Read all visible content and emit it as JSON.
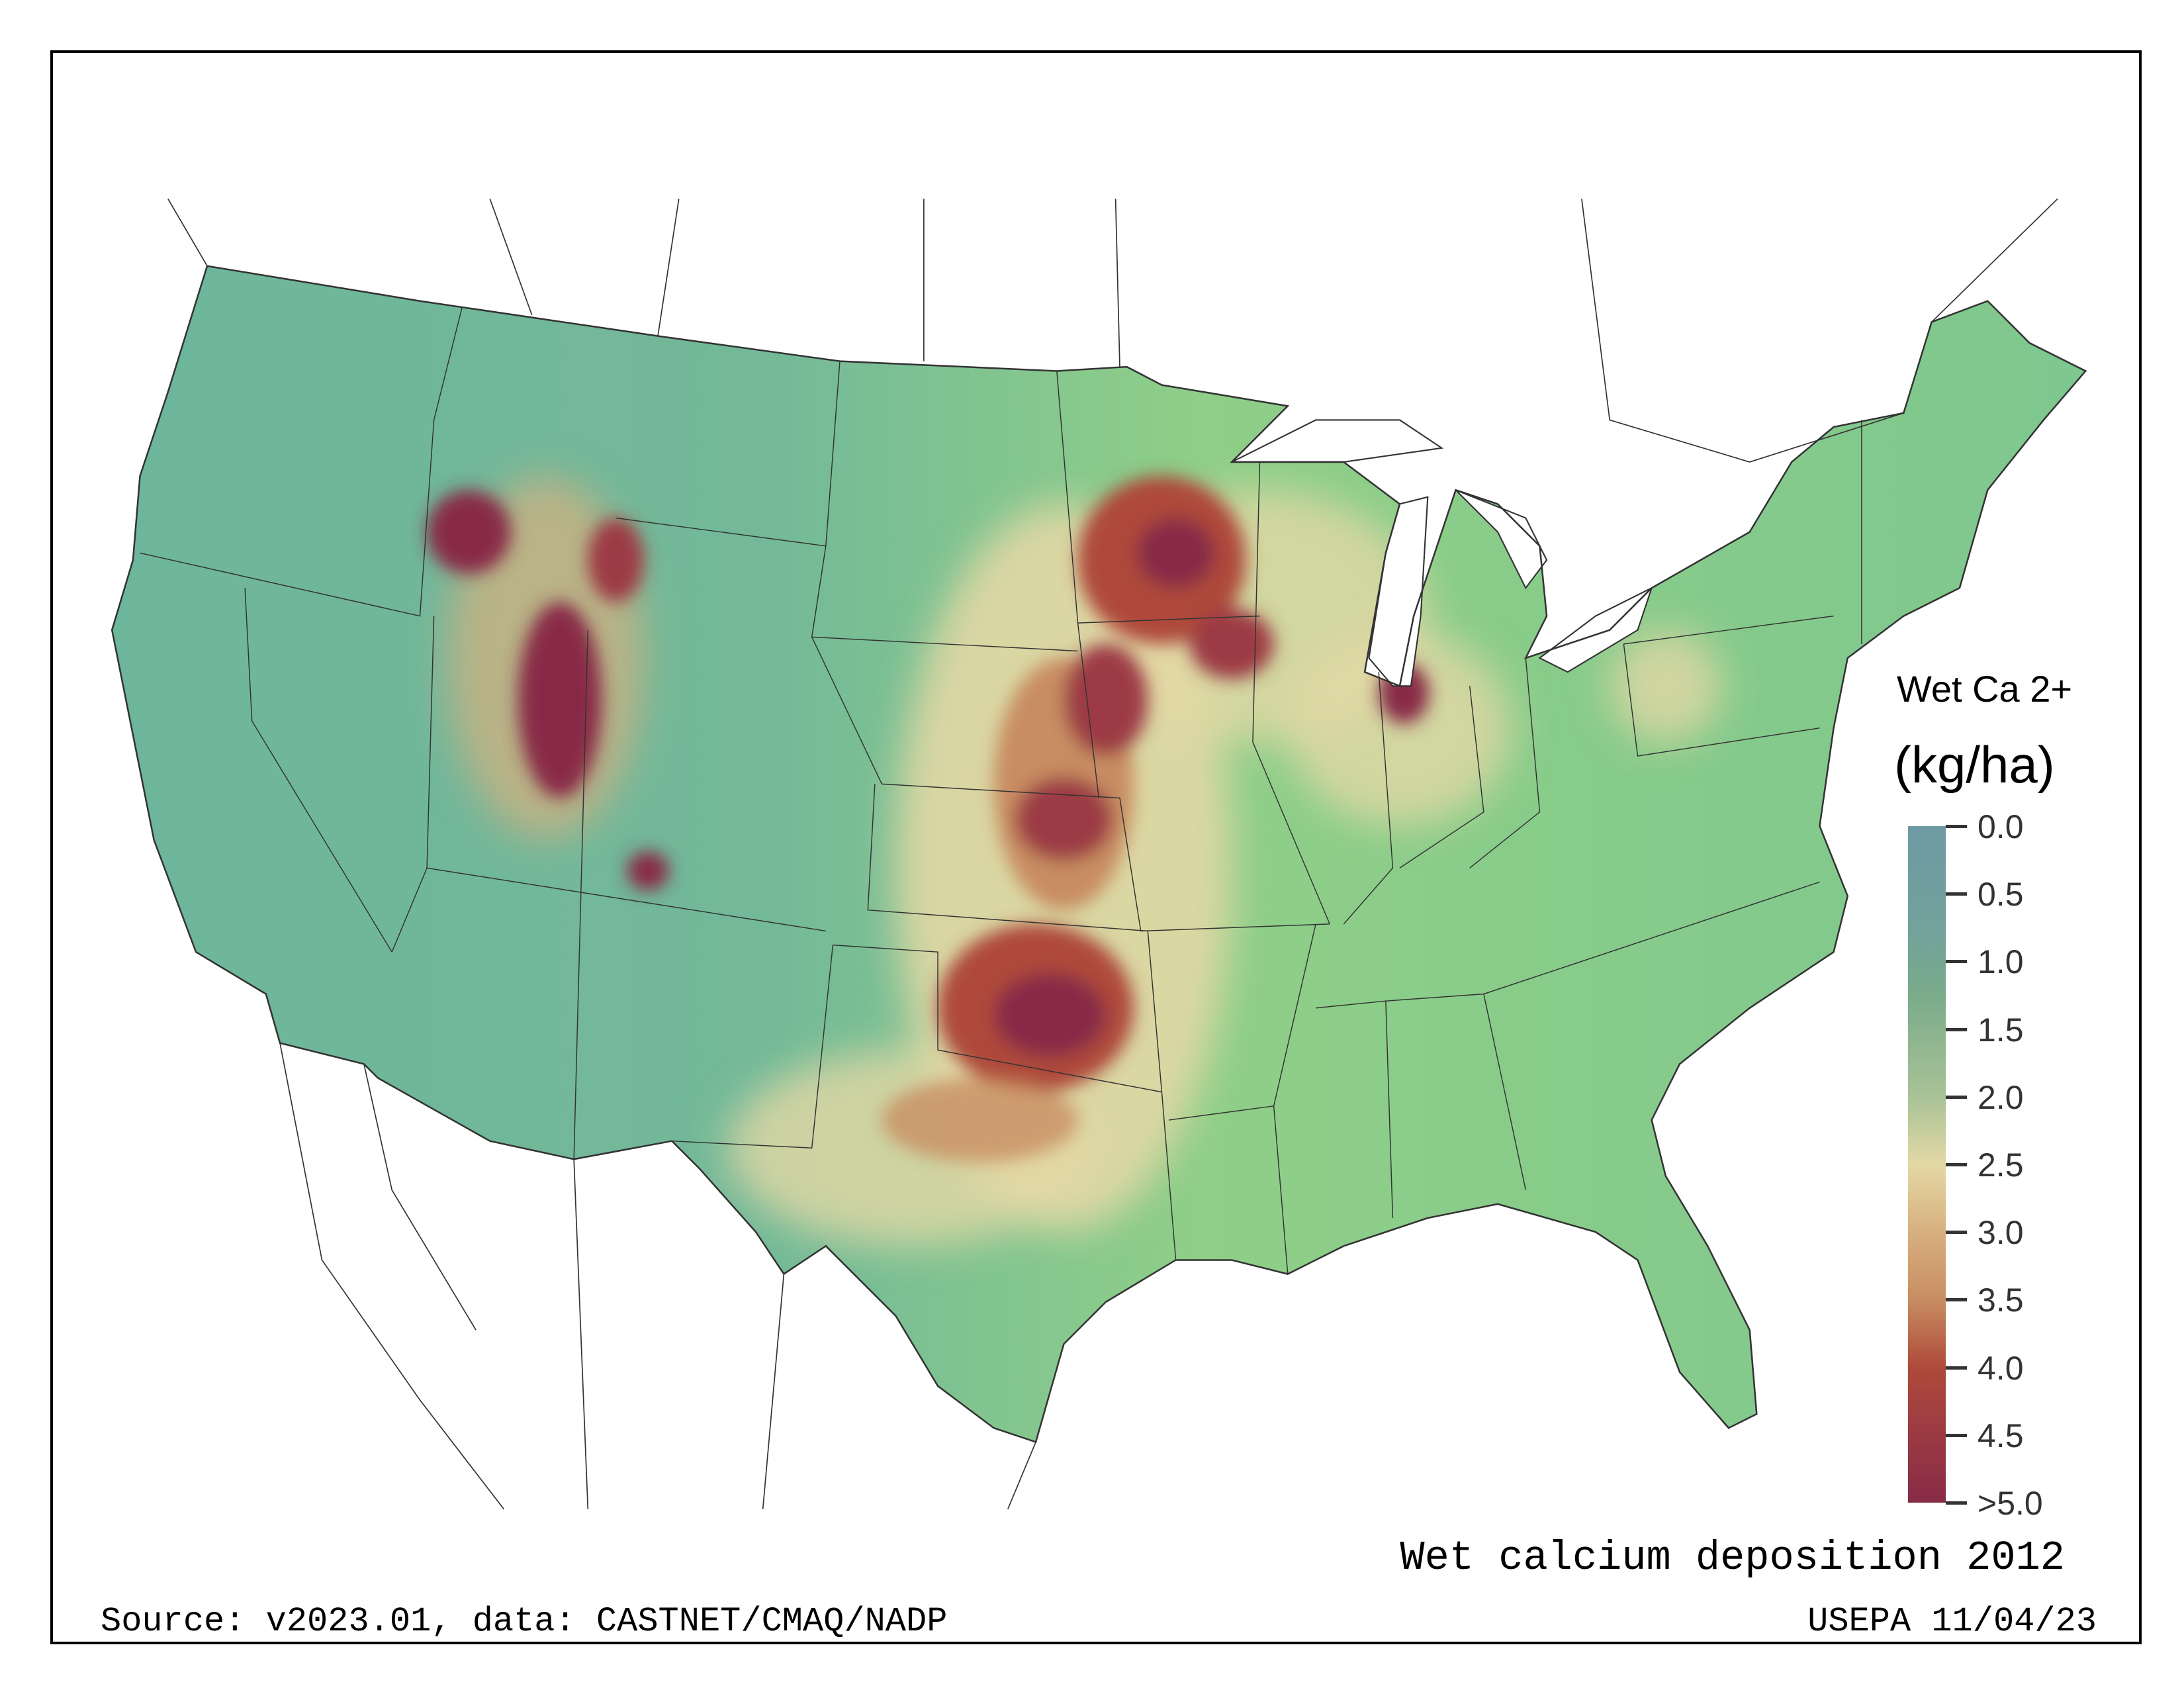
{
  "legend": {
    "title_line1": "Wet Ca 2+",
    "title_line2": "(kg/ha)",
    "ticks": [
      "0.0",
      "0.5",
      "1.0",
      "1.5",
      "2.0",
      "2.5",
      "3.0",
      "3.5",
      "4.0",
      "4.5",
      ">5.0"
    ],
    "colors": [
      "#6f9aa3",
      "#7aab8a",
      "#e3d8a5",
      "#c88d62",
      "#ae4a3a",
      "#882b46"
    ]
  },
  "map": {
    "title": "Wet calcium deposition 2012",
    "source": "Source: v2023.01, data: CASTNET/CMAQ/NADP",
    "credit": "USEPA 11/04/23"
  }
}
